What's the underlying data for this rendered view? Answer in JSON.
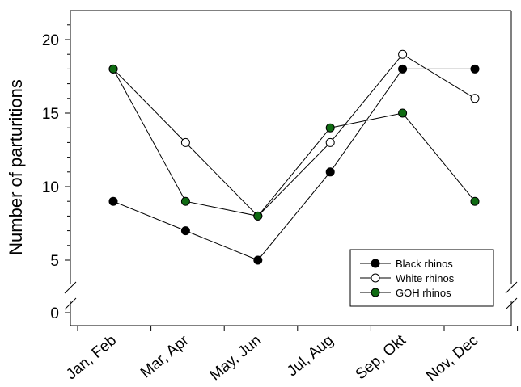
{
  "chart_data": {
    "type": "line",
    "title": "",
    "xlabel": "",
    "ylabel": "Number of parturitions",
    "categories": [
      "Jan, Feb",
      "Mar, Apr",
      "May, Jun",
      "Jul, Aug",
      "Sep, Okt",
      "Nov, Dec"
    ],
    "y_ticks": [
      "0",
      "5",
      "10",
      "15",
      "20"
    ],
    "y_axis_break": [
      0,
      4
    ],
    "ylim": [
      3.4,
      22
    ],
    "grid": false,
    "legend_position": "bottom-right",
    "series": [
      {
        "name": "Black rhinos",
        "values": [
          9,
          7,
          5,
          11,
          18,
          18
        ],
        "marker_fill": "#000000"
      },
      {
        "name": "White rhinos",
        "values": [
          18,
          13,
          8,
          13,
          19,
          16
        ],
        "marker_fill": "#ffffff"
      },
      {
        "name": "GOH rhinos",
        "values": [
          18,
          9,
          8,
          14,
          15,
          9
        ],
        "marker_fill": "#0f6b12"
      }
    ]
  }
}
